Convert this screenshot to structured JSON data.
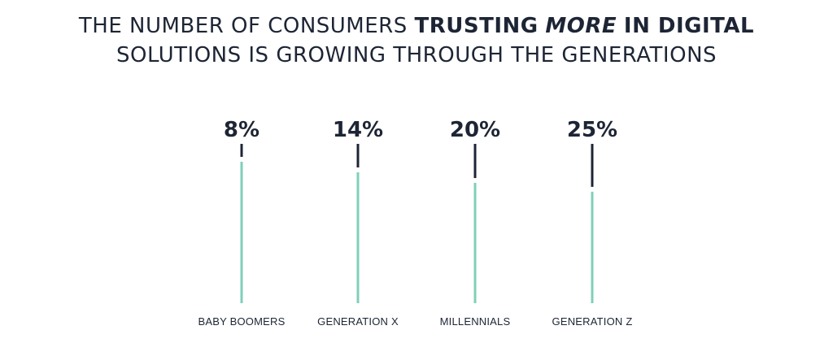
{
  "title": {
    "line1_part1": "THE NUMBER OF CONSUMERS",
    "line1_part2": "TRUSTING",
    "line1_part3": "MORE",
    "line1_part4": "IN DIGITAL",
    "line2": "SOLUTIONS IS GROWING THROUGH THE GENERATIONS"
  },
  "colors": {
    "accent": "#7fcfb8",
    "marker": "#1d2535",
    "text": "#1d2535"
  },
  "chart_data": {
    "type": "bar",
    "categories": [
      "BABY BOOMERS",
      "GENERATION X",
      "MILLENNIALS",
      "GENERATION Z"
    ],
    "values": [
      8,
      14,
      20,
      25
    ],
    "value_labels": [
      "8%",
      "14%",
      "20%",
      "25%"
    ],
    "ylim": [
      0,
      100
    ],
    "grid": false,
    "legend": "none"
  }
}
